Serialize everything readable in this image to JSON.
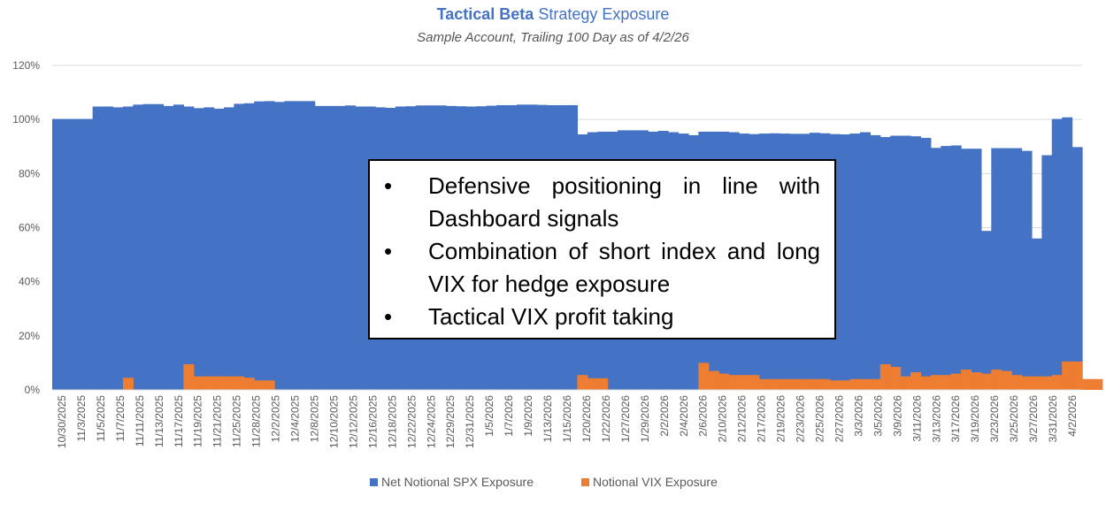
{
  "header": {
    "title_strong": "Tactical Beta",
    "title_rest": " Strategy Exposure",
    "subtitle": "Sample Account, Trailing 100 Day as of 4/2/26"
  },
  "callout": {
    "bullets": [
      "Defensive positioning in line with Dashboard signals",
      "Combination of short index and long VIX for hedge exposure",
      "Tactical VIX profit taking"
    ]
  },
  "colors": {
    "spx": "#4472c4",
    "vix": "#ed7d31",
    "axis": "#d9d9d9",
    "text": "#595959"
  },
  "chart_data": {
    "type": "area",
    "title": "Tactical Beta Strategy Exposure",
    "subtitle": "Sample Account, Trailing 100 Day as of 4/2/26",
    "ylim": [
      0,
      120
    ],
    "yticks": [
      0,
      20,
      40,
      60,
      80,
      100,
      120
    ],
    "ytick_labels": [
      "0%",
      "20%",
      "40%",
      "60%",
      "80%",
      "100%",
      "120%"
    ],
    "x_tick_labels": [
      "10/30/2025",
      "11/3/2025",
      "11/5/2025",
      "11/7/2025",
      "11/11/2025",
      "11/13/2025",
      "11/17/2025",
      "11/19/2025",
      "11/21/2025",
      "11/25/2025",
      "11/28/2025",
      "12/2/2025",
      "12/4/2025",
      "12/8/2025",
      "12/10/2025",
      "12/12/2025",
      "12/16/2025",
      "12/18/2025",
      "12/22/2025",
      "12/24/2025",
      "12/29/2025",
      "12/31/2025",
      "1/5/2026",
      "1/7/2026",
      "1/9/2026",
      "1/13/2026",
      "1/15/2026",
      "1/20/2026",
      "1/22/2026",
      "1/27/2026",
      "1/29/2026",
      "2/2/2026",
      "2/4/2026",
      "2/6/2026",
      "2/10/2026",
      "2/12/2026",
      "2/17/2026",
      "2/19/2026",
      "2/23/2026",
      "2/25/2026",
      "2/27/2026",
      "3/3/2026",
      "3/5/2026",
      "3/9/2026",
      "3/11/2026",
      "3/13/2026",
      "3/17/2026",
      "3/19/2026",
      "3/23/2026",
      "3/25/2026",
      "3/27/2026",
      "3/31/2026",
      "4/2/2026"
    ],
    "legend": [
      "Net Notional SPX Exposure",
      "Notional VIX Exposure"
    ],
    "legend_position": "bottom",
    "grid": true,
    "series": [
      {
        "name": "Net Notional SPX Exposure",
        "values": [
          100.2,
          100.2,
          100.2,
          100.2,
          104.8,
          104.8,
          104.5,
          104.8,
          105.5,
          105.7,
          105.7,
          105,
          105.5,
          104.8,
          104.2,
          104.5,
          104,
          104.5,
          105.8,
          106,
          106.7,
          106.8,
          106.5,
          106.8,
          106.8,
          106.8,
          105,
          105,
          105,
          105.2,
          104.8,
          104.8,
          104.5,
          104.3,
          104.8,
          104.9,
          105.2,
          105.2,
          105.2,
          105,
          104.9,
          104.8,
          104.9,
          105.1,
          105.3,
          105.3,
          105.5,
          105.5,
          105.4,
          105.3,
          105.3,
          105.3,
          94.5,
          95.3,
          95.5,
          95.5,
          96,
          96,
          96,
          95.5,
          95.8,
          95.3,
          94.8,
          94.2,
          95.5,
          95.5,
          95.5,
          95.3,
          94.8,
          94.6,
          94.8,
          94.9,
          94.8,
          94.7,
          94.7,
          95.1,
          94.9,
          94.6,
          94.5,
          94.8,
          95.3,
          94.2,
          93.5,
          94,
          94,
          93.8,
          93.2,
          89.5,
          90.2,
          90.4,
          89.2,
          89.2,
          58.8,
          89.4,
          89.4,
          89.4,
          88.4,
          56,
          86.8,
          100.2,
          100.8,
          89.8
        ]
      },
      {
        "name": "Notional VIX Exposure",
        "values": [
          0,
          0,
          0,
          0,
          0,
          0,
          0,
          4.5,
          0,
          0,
          0,
          0,
          0,
          9.5,
          5,
          5,
          5,
          5,
          5,
          4.5,
          3.5,
          3.5,
          0,
          0,
          0,
          0,
          0,
          0,
          0,
          0,
          0,
          0,
          0,
          0,
          0,
          0,
          0,
          0,
          0,
          0,
          0,
          0,
          0,
          0,
          0,
          0,
          0,
          0,
          0,
          0,
          0,
          0,
          5.5,
          4.3,
          4.3,
          0,
          0,
          0,
          0,
          0,
          0,
          0,
          0,
          0,
          10,
          7,
          6,
          5.5,
          5.5,
          5.5,
          4,
          4,
          4,
          4,
          4,
          4,
          4,
          3.5,
          3.5,
          4,
          4,
          4,
          9.5,
          8.5,
          5,
          6.5,
          5,
          5.5,
          5.5,
          6,
          7.5,
          6.5,
          6,
          7.5,
          7,
          5.5,
          5,
          5,
          5,
          5.5,
          10.5,
          10.5,
          4,
          4
        ]
      }
    ]
  }
}
